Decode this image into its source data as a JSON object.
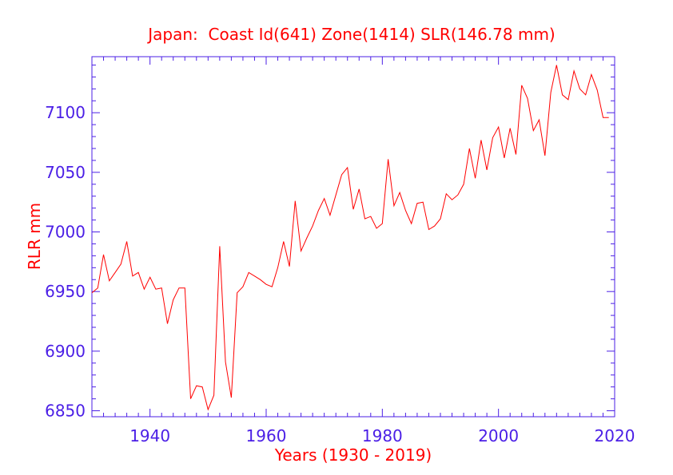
{
  "colors": {
    "axis": "#4b1fe6",
    "series": "#ff0000",
    "text": "#ff0000",
    "background": "#ffffff"
  },
  "chart_data": {
    "type": "line",
    "title": "Japan:  Coast Id(641) Zone(1414) SLR(146.78 mm)",
    "xlabel": "Years (1930 - 2019)",
    "ylabel": "RLR mm",
    "xlim": [
      1930,
      2020
    ],
    "ylim": [
      6845,
      7147
    ],
    "x_ticks": [
      1940,
      1960,
      1980,
      2000,
      2020
    ],
    "y_ticks": [
      6850,
      6900,
      6950,
      7000,
      7050,
      7100
    ],
    "grid": false,
    "x": [
      1930,
      1931,
      1932,
      1933,
      1934,
      1935,
      1936,
      1937,
      1938,
      1939,
      1940,
      1941,
      1942,
      1943,
      1944,
      1945,
      1946,
      1947,
      1948,
      1949,
      1950,
      1951,
      1952,
      1953,
      1954,
      1955,
      1956,
      1957,
      1958,
      1959,
      1960,
      1961,
      1962,
      1963,
      1964,
      1965,
      1966,
      1967,
      1968,
      1969,
      1970,
      1971,
      1972,
      1973,
      1974,
      1975,
      1976,
      1977,
      1978,
      1979,
      1980,
      1981,
      1982,
      1983,
      1984,
      1985,
      1986,
      1987,
      1988,
      1989,
      1990,
      1991,
      1992,
      1993,
      1994,
      1995,
      1996,
      1997,
      1998,
      1999,
      2000,
      2001,
      2002,
      2003,
      2004,
      2005,
      2006,
      2007,
      2008,
      2009,
      2010,
      2011,
      2012,
      2013,
      2014,
      2015,
      2016,
      2017,
      2018,
      2019
    ],
    "y": [
      6949,
      6953,
      6981,
      6959,
      6966,
      6973,
      6992,
      6963,
      6966,
      6952,
      6962,
      6952,
      6953,
      6923,
      6943,
      6953,
      6953,
      6860,
      6871,
      6870,
      6851,
      6863,
      6988,
      6891,
      6861,
      6949,
      6954,
      6966,
      6963,
      6960,
      6956,
      6954,
      6970,
      6992,
      6971,
      7026,
      6984,
      6995,
      7005,
      7018,
      7028,
      7014,
      7031,
      7048,
      7054,
      7019,
      7036,
      7011,
      7013,
      7003,
      7007,
      7061,
      7022,
      7033,
      7018,
      7007,
      7024,
      7025,
      7002,
      7005,
      7011,
      7032,
      7027,
      7031,
      7040,
      7070,
      7045,
      7077,
      7052,
      7079,
      7088,
      7062,
      7087,
      7065,
      7123,
      7112,
      7085,
      7094,
      7064,
      7117,
      7140,
      7115,
      7111,
      7135,
      7120,
      7115,
      7132,
      7119,
      7096,
      7096
    ]
  }
}
